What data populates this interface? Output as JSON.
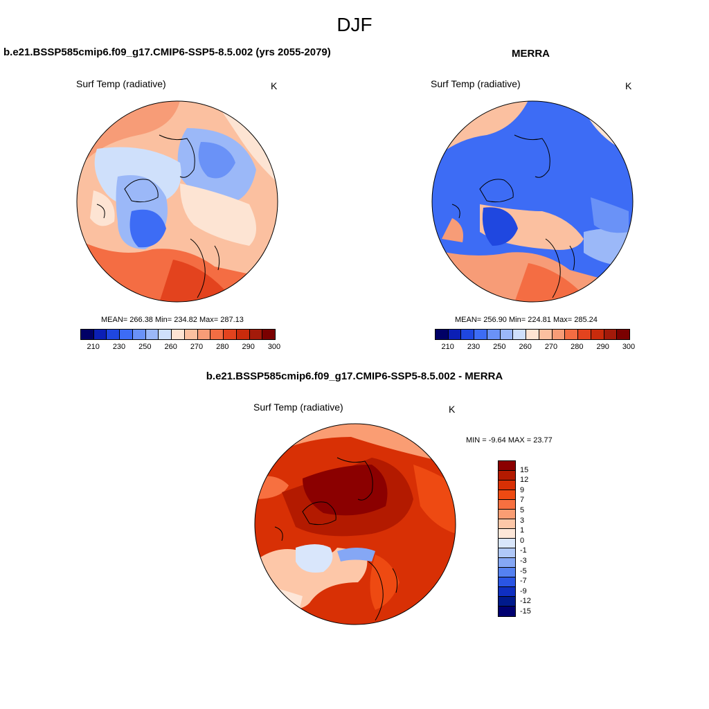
{
  "figure": {
    "suptitle": "DJF"
  },
  "panels": {
    "model": {
      "title": "b.e21.BSSP585cmip6.f09_g17.CMIP6-SSP5-8.5.002 (yrs 2055-2079)",
      "left_label": "Surf Temp (radiative)",
      "right_label": "K",
      "stats": {
        "mean_label": "MEAN=",
        "mean": "266.38",
        "min_label": "Min=",
        "min": "234.82",
        "max_label": "Max=",
        "max": "287.13"
      }
    },
    "obs": {
      "title": "MERRA",
      "left_label": "Surf Temp (radiative)",
      "right_label": "K",
      "stats": {
        "mean_label": "MEAN=",
        "mean": "256.90",
        "min_label": "Min=",
        "min": "224.81",
        "max_label": "Max=",
        "max": "285.24"
      }
    },
    "diff": {
      "title": "b.e21.BSSP585cmip6.f09_g17.CMIP6-SSP5-8.5.002 - MERRA",
      "left_label": "Surf Temp (radiative)",
      "right_label": "K",
      "minmax_text": "MIN =  -9.64 MAX =  23.77"
    }
  },
  "colorbars": {
    "absolute": {
      "tick_labels": [
        "210",
        "230",
        "250",
        "260",
        "270",
        "280",
        "290",
        "300"
      ],
      "colors": [
        "#000066",
        "#0b1fb5",
        "#1f47e0",
        "#3d6cf5",
        "#6a92f7",
        "#9bb8f8",
        "#cfe0fb",
        "#fde4d3",
        "#fbc0a0",
        "#f79c77",
        "#f46d43",
        "#e3431e",
        "#c92b0c",
        "#a31a0a",
        "#7a0000"
      ]
    },
    "difference": {
      "tick_labels": [
        "15",
        "12",
        "9",
        "7",
        "5",
        "3",
        "1",
        "0",
        "-1",
        "-3",
        "-5",
        "-7",
        "-9",
        "-12",
        "-15"
      ],
      "colors": [
        "#8b0000",
        "#b31a00",
        "#d83005",
        "#ee4a12",
        "#f77040",
        "#fa9d73",
        "#fdc7a8",
        "#fde7d9",
        "#d9e6fb",
        "#b0c8f8",
        "#85a7f5",
        "#5581f1",
        "#2a55e4",
        "#0f2fc0",
        "#001a8c",
        "#000070"
      ]
    }
  },
  "chart_data": {
    "type": "heatmap",
    "projection": "north polar stereographic",
    "variable": "Surf Temp (radiative)",
    "units": "K",
    "season": "DJF",
    "maps": [
      {
        "name": "b.e21.BSSP585cmip6.f09_g17.CMIP6-SSP5-8.5.002 (yrs 2055-2079)",
        "mean": 266.38,
        "min": 234.82,
        "max": 287.13,
        "levels": [
          210,
          220,
          230,
          240,
          250,
          255,
          260,
          265,
          270,
          275,
          280,
          285,
          290,
          295,
          300
        ]
      },
      {
        "name": "MERRA",
        "mean": 256.9,
        "min": 224.81,
        "max": 285.24,
        "levels": [
          210,
          220,
          230,
          240,
          250,
          255,
          260,
          265,
          270,
          275,
          280,
          285,
          290,
          295,
          300
        ]
      },
      {
        "name": "b.e21.BSSP585cmip6.f09_g17.CMIP6-SSP5-8.5.002 - MERRA",
        "min": -9.64,
        "max": 23.77,
        "levels": [
          -15,
          -12,
          -9,
          -7,
          -5,
          -3,
          -1,
          0,
          1,
          3,
          5,
          7,
          9,
          12,
          15
        ]
      }
    ]
  }
}
